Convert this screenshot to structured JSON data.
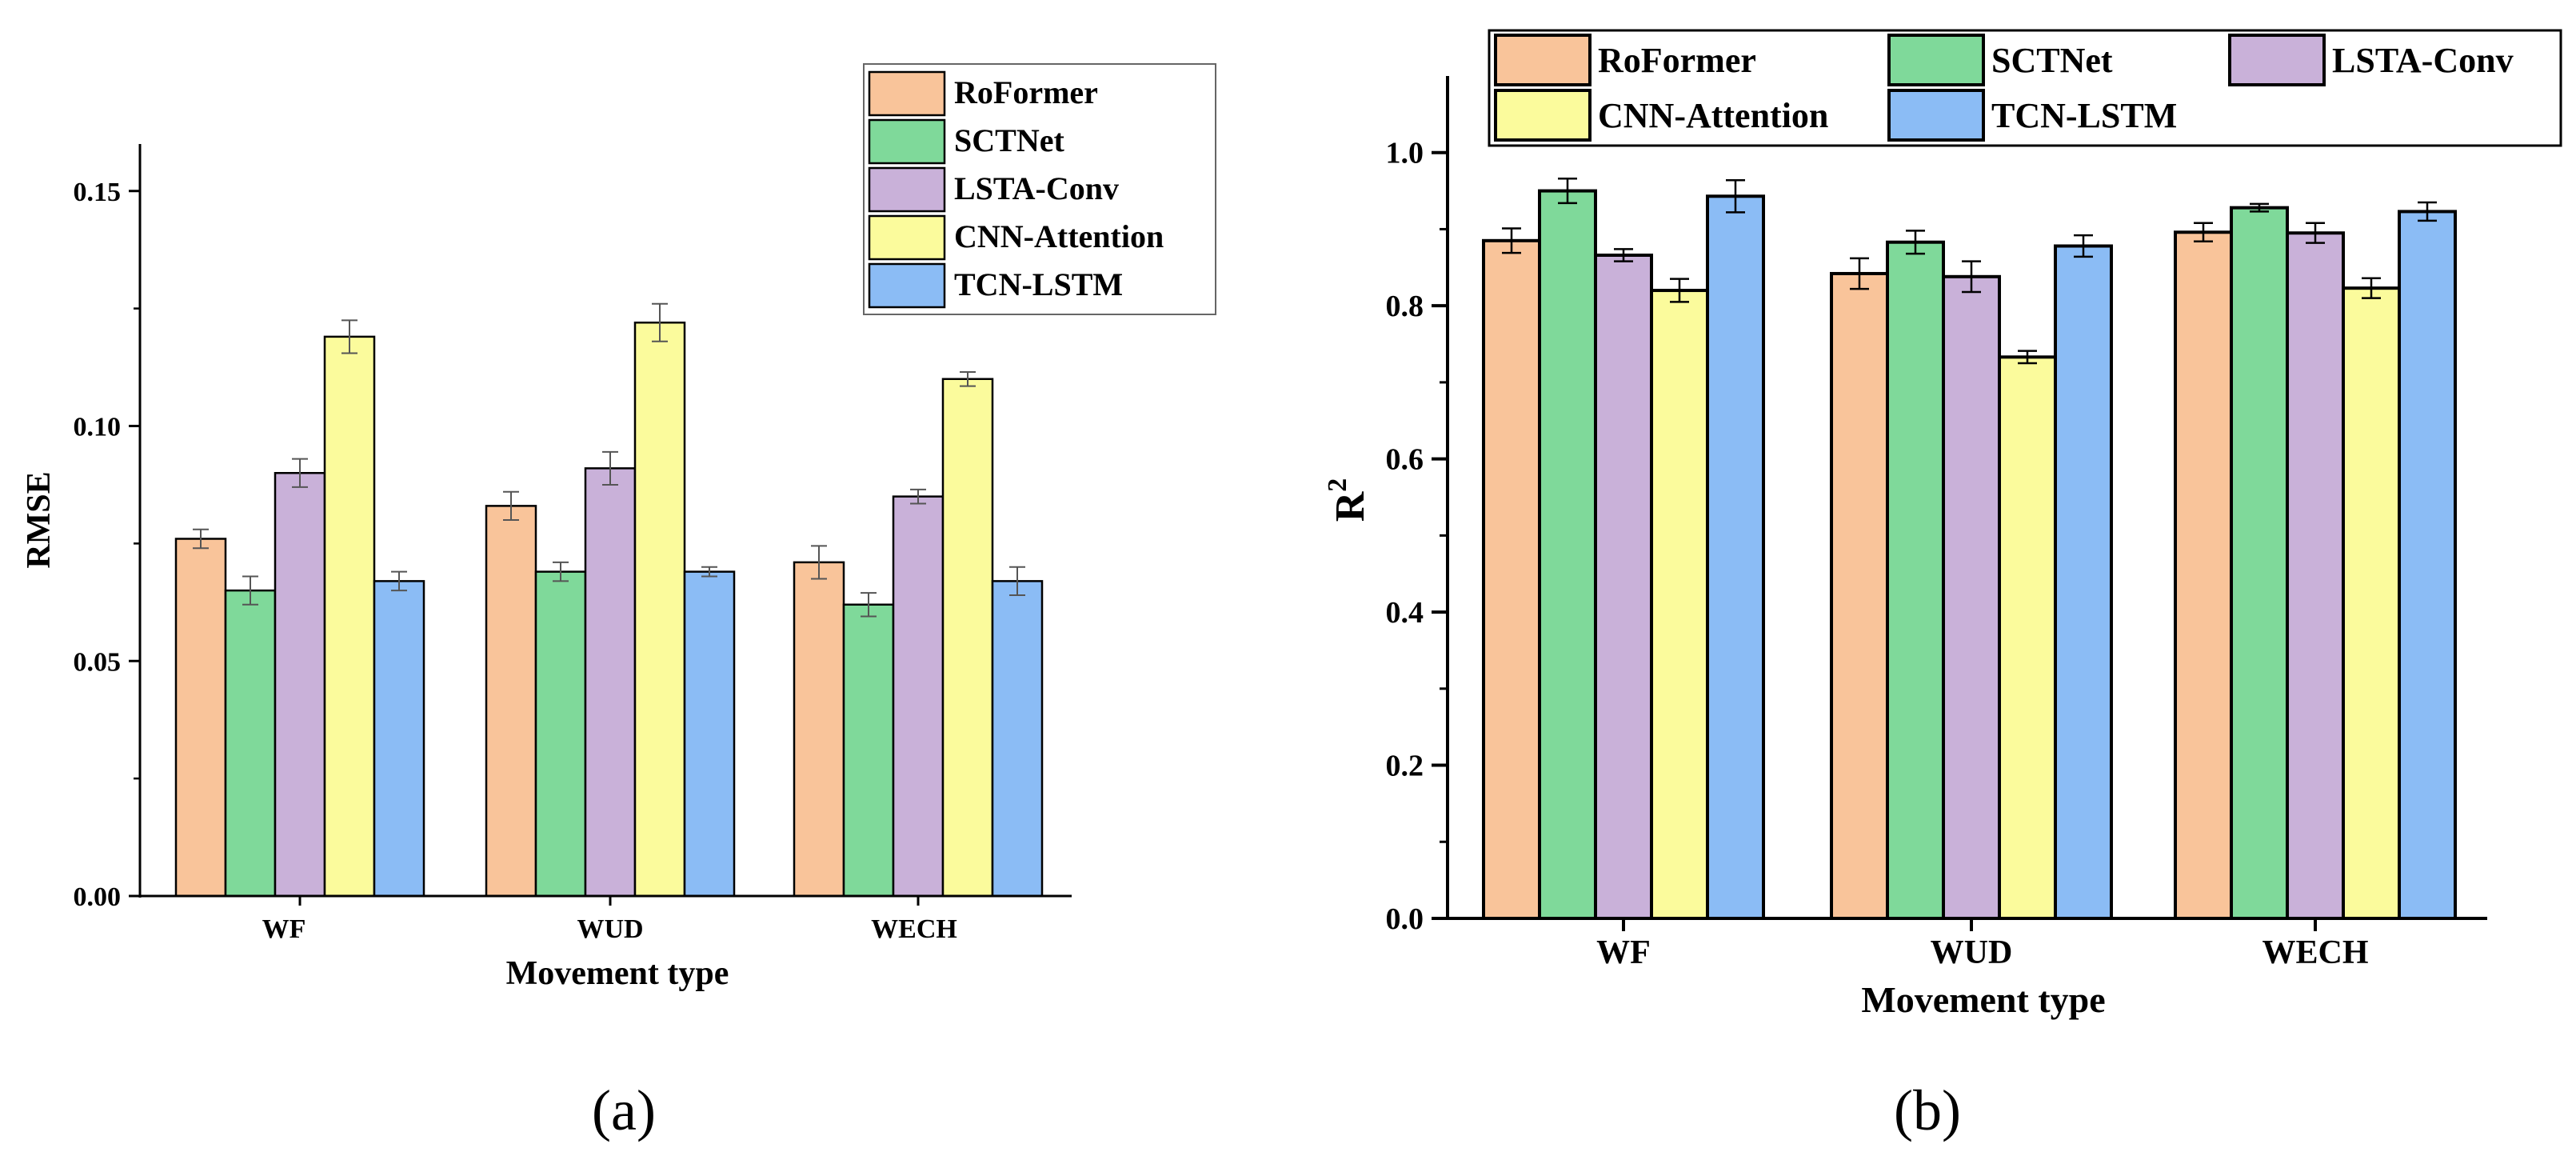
{
  "chart_data": [
    {
      "type": "bar",
      "panel_label": "(a)",
      "title": "",
      "xlabel": "Movement type",
      "ylabel": "RMSE",
      "categories": [
        "WF",
        "WUD",
        "WECH"
      ],
      "ylim": [
        0,
        0.16
      ],
      "yticks": [
        0.0,
        0.05,
        0.1,
        0.15
      ],
      "ytick_labels": [
        "0.00",
        "0.05",
        "0.10",
        "0.15"
      ],
      "legend_position": "top-right",
      "series": [
        {
          "name": "RoFormer",
          "color": "#f9c49a",
          "values": [
            0.076,
            0.083,
            0.071
          ],
          "errors": [
            0.002,
            0.003,
            0.0035
          ]
        },
        {
          "name": "SCTNet",
          "color": "#7fd99a",
          "values": [
            0.065,
            0.069,
            0.062
          ],
          "errors": [
            0.003,
            0.002,
            0.0025
          ]
        },
        {
          "name": "LSTA-Conv",
          "color": "#c9b1d9",
          "values": [
            0.09,
            0.091,
            0.085
          ],
          "errors": [
            0.003,
            0.0035,
            0.0015
          ]
        },
        {
          "name": "CNN-Attention",
          "color": "#fbfb9c",
          "values": [
            0.119,
            0.122,
            0.11
          ],
          "errors": [
            0.0035,
            0.004,
            0.0015
          ]
        },
        {
          "name": "TCN-LSTM",
          "color": "#8bbcf5",
          "values": [
            0.067,
            0.069,
            0.067
          ],
          "errors": [
            0.002,
            0.001,
            0.003
          ]
        }
      ]
    },
    {
      "type": "bar",
      "panel_label": "(b)",
      "title": "",
      "xlabel": "Movement type",
      "ylabel": "R",
      "ylabel_superscript": "2",
      "categories": [
        "WF",
        "WUD",
        "WECH"
      ],
      "ylim": [
        0,
        1.1
      ],
      "yticks": [
        0.0,
        0.2,
        0.4,
        0.6,
        0.8,
        1.0
      ],
      "ytick_labels": [
        "0.0",
        "0.2",
        "0.4",
        "0.6",
        "0.8",
        "1.0"
      ],
      "legend_position": "top",
      "series": [
        {
          "name": "RoFormer",
          "color": "#f9c49a",
          "values": [
            0.885,
            0.842,
            0.896
          ],
          "errors": [
            0.016,
            0.02,
            0.012
          ]
        },
        {
          "name": "SCTNet",
          "color": "#7fd99a",
          "values": [
            0.95,
            0.883,
            0.928
          ],
          "errors": [
            0.016,
            0.015,
            0.005
          ]
        },
        {
          "name": "LSTA-Conv",
          "color": "#c9b1d9",
          "values": [
            0.866,
            0.838,
            0.895
          ],
          "errors": [
            0.008,
            0.02,
            0.013
          ]
        },
        {
          "name": "CNN-Attention",
          "color": "#fbfb9c",
          "values": [
            0.82,
            0.733,
            0.823
          ],
          "errors": [
            0.015,
            0.008,
            0.013
          ]
        },
        {
          "name": "TCN-LSTM",
          "color": "#8bbcf5",
          "values": [
            0.943,
            0.878,
            0.923
          ],
          "errors": [
            0.021,
            0.014,
            0.012
          ]
        }
      ]
    }
  ]
}
